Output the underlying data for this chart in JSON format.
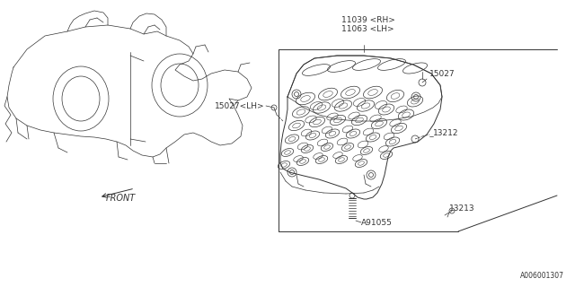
{
  "bg_color": "#ffffff",
  "line_color": "#333333",
  "lw_thin": 0.5,
  "lw_med": 0.7,
  "lw_thick": 0.9,
  "title_code": "A006001307",
  "labels": {
    "rh_lh": "11039 <RH>\n11063 <LH>",
    "p15027_lh": "15027<LH>",
    "p15027": "15027",
    "p13212": "13212",
    "p13213": "13213",
    "pA91055": "A91055",
    "front": "FRONT"
  }
}
